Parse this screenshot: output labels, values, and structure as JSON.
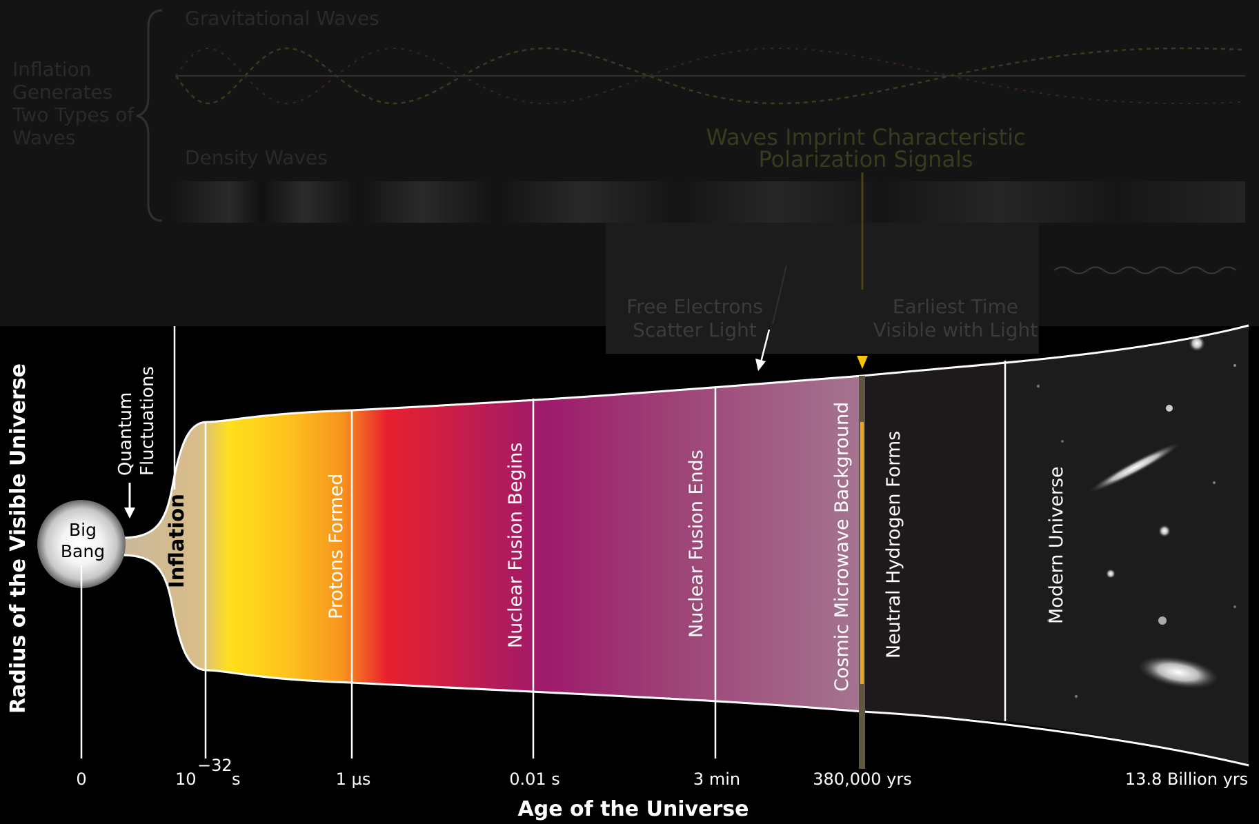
{
  "top_panel": {
    "group_label_lines": [
      "Inflation",
      "Generates",
      "Two Types of",
      "Waves"
    ],
    "gravitational_waves": "Gravitational Waves",
    "density_waves": "Density Waves",
    "imprint_lines": [
      "Waves Imprint Characteristic",
      "Polarization Signals"
    ],
    "scatter_lines": [
      "Free Electrons",
      "Scatter Light"
    ],
    "visible_lines": [
      "Earliest Time",
      "Visible with Light"
    ]
  },
  "left_labels": {
    "big_bang_lines": [
      "Big",
      "Bang"
    ],
    "quantum_lines": [
      "Quantum",
      "Fluctuations"
    ],
    "inflation": "Inflation"
  },
  "eras": {
    "protons": "Protons Formed",
    "fusion_begins": "Nuclear Fusion Begins",
    "fusion_ends": "Nuclear Fusion Ends",
    "cmb": "Cosmic Microwave Background",
    "hydrogen": "Neutral Hydrogen Forms",
    "modern": "Modern Universe"
  },
  "axis": {
    "y_title": "Radius of the Visible Universe",
    "x_title": "Age of the Universe",
    "ticks": {
      "t0": "0",
      "t1_base": "10",
      "t1_exp": "−32",
      "t1_unit": "s",
      "t2": "1 µs",
      "t3": "0.01 s",
      "t4": "3 min",
      "t5": "380,000 yrs",
      "t6": "13.8 Billion yrs"
    }
  },
  "colors": {
    "yellow": "#ffe01a",
    "orange": "#f7941d",
    "red": "#e8202e",
    "magenta": "#9e1a6b",
    "mauve": "#a47690",
    "dark_section": "#1e1a1c",
    "cmb_line": "#f2a41a",
    "marker_yellow": "#f5c400"
  }
}
